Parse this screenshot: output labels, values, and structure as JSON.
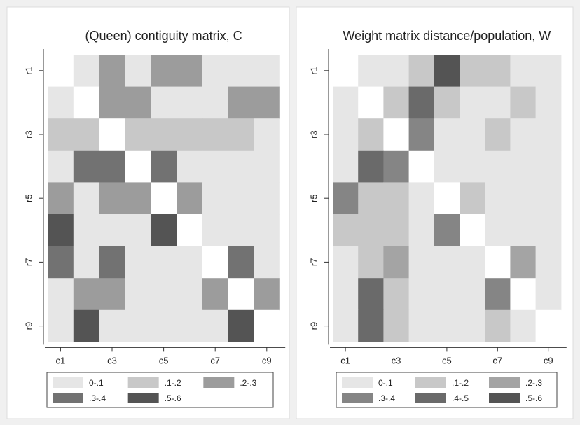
{
  "chart_data": [
    {
      "type": "heatmap",
      "title": "(Queen) contiguity matrix, C",
      "row_ticks": [
        "r1",
        "r3",
        "r5",
        "r7",
        "r9"
      ],
      "col_ticks": [
        "c1",
        "c3",
        "c5",
        "c7",
        "c9"
      ],
      "legend": {
        "placement": "bottom",
        "bins": [
          {
            "label": "0-.1",
            "color": "#e6e6e6"
          },
          {
            "label": ".1-.2",
            "color": "#c8c8c8"
          },
          {
            "label": ".2-.3",
            "color": "#9c9c9c"
          },
          {
            "label": ".3-.4",
            "color": "#727272"
          },
          {
            "label": ".5-.6",
            "color": "#545454"
          }
        ]
      },
      "binned_values": [
        [
          0,
          1,
          3,
          1,
          3,
          3,
          1,
          1,
          1
        ],
        [
          1,
          0,
          3,
          3,
          1,
          1,
          1,
          3,
          3
        ],
        [
          2,
          2,
          0,
          2,
          2,
          2,
          2,
          2,
          1
        ],
        [
          1,
          4,
          4,
          0,
          4,
          1,
          1,
          1,
          1
        ],
        [
          3,
          1,
          3,
          3,
          0,
          3,
          1,
          1,
          1
        ],
        [
          5,
          1,
          1,
          1,
          5,
          0,
          1,
          1,
          1
        ],
        [
          4,
          1,
          4,
          1,
          1,
          1,
          0,
          4,
          1
        ],
        [
          1,
          3,
          3,
          1,
          1,
          1,
          3,
          0,
          3
        ],
        [
          1,
          5,
          1,
          1,
          1,
          1,
          1,
          5,
          0
        ]
      ]
    },
    {
      "type": "heatmap",
      "title": "Weight matrix distance/population, W",
      "row_ticks": [
        "r1",
        "r3",
        "r5",
        "r7",
        "r9"
      ],
      "col_ticks": [
        "c1",
        "c3",
        "c5",
        "c7",
        "c9"
      ],
      "legend": {
        "placement": "bottom",
        "bins": [
          {
            "label": "0-.1",
            "color": "#e6e6e6"
          },
          {
            "label": ".1-.2",
            "color": "#c8c8c8"
          },
          {
            "label": ".2-.3",
            "color": "#a4a4a4"
          },
          {
            "label": ".3-.4",
            "color": "#858585"
          },
          {
            "label": ".4-.5",
            "color": "#6a6a6a"
          },
          {
            "label": ".5-.6",
            "color": "#545454"
          }
        ]
      },
      "binned_values": [
        [
          0,
          1,
          1,
          2,
          6,
          2,
          2,
          1,
          1
        ],
        [
          1,
          0,
          2,
          5,
          2,
          1,
          1,
          2,
          1
        ],
        [
          1,
          2,
          0,
          4,
          1,
          1,
          2,
          1,
          1
        ],
        [
          1,
          5,
          4,
          0,
          1,
          1,
          1,
          1,
          1
        ],
        [
          4,
          2,
          2,
          1,
          0,
          2,
          1,
          1,
          1
        ],
        [
          2,
          2,
          2,
          1,
          4,
          0,
          1,
          1,
          1
        ],
        [
          1,
          2,
          3,
          1,
          1,
          1,
          0,
          3,
          1
        ],
        [
          1,
          5,
          2,
          1,
          1,
          1,
          4,
          0,
          1
        ],
        [
          1,
          5,
          2,
          1,
          1,
          1,
          2,
          1,
          0
        ]
      ]
    }
  ]
}
